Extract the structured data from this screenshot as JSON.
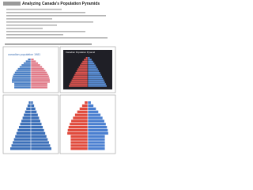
{
  "header": {
    "title": "Analyzing Canada's Population Pyramids"
  },
  "panels": [
    {
      "label": "canadian population 1981"
    },
    {
      "label": "Canadian Population Pyramid"
    }
  ]
}
